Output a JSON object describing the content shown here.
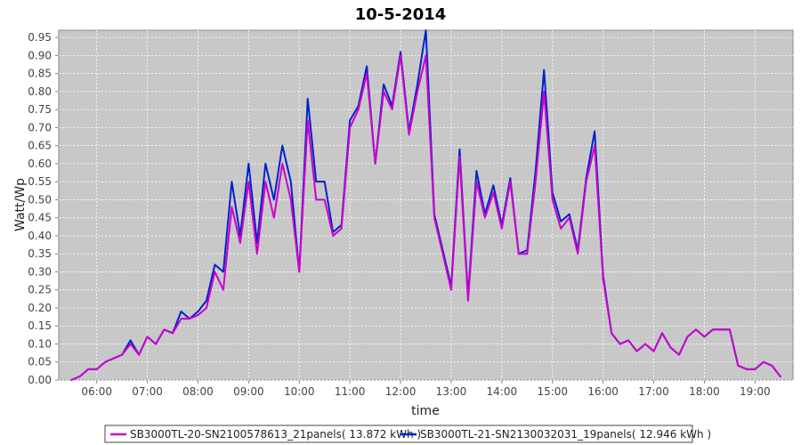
{
  "chart_data": {
    "type": "line",
    "title": "10-5-2014",
    "xlabel": "time",
    "ylabel": "Watt/Wp",
    "xlim": [
      "05:15",
      "19:45"
    ],
    "ylim": [
      0,
      0.97
    ],
    "x_ticks": [
      "06:00",
      "07:00",
      "08:00",
      "09:00",
      "10:00",
      "11:00",
      "12:00",
      "13:00",
      "14:00",
      "15:00",
      "16:00",
      "17:00",
      "18:00",
      "19:00"
    ],
    "y_ticks": [
      "0.00",
      "0.05",
      "0.10",
      "0.15",
      "0.20",
      "0.25",
      "0.30",
      "0.35",
      "0.40",
      "0.45",
      "0.50",
      "0.55",
      "0.60",
      "0.65",
      "0.70",
      "0.75",
      "0.80",
      "0.85",
      "0.90",
      "0.95"
    ],
    "grid": true,
    "plot_background": "#c8c8c8",
    "legend_position": "bottom",
    "x": [
      "05:30",
      "05:40",
      "05:50",
      "06:00",
      "06:10",
      "06:20",
      "06:30",
      "06:40",
      "06:50",
      "07:00",
      "07:10",
      "07:20",
      "07:30",
      "07:40",
      "07:50",
      "08:00",
      "08:10",
      "08:20",
      "08:30",
      "08:40",
      "08:50",
      "09:00",
      "09:10",
      "09:20",
      "09:30",
      "09:40",
      "09:50",
      "10:00",
      "10:10",
      "10:20",
      "10:30",
      "10:40",
      "10:50",
      "11:00",
      "11:10",
      "11:20",
      "11:30",
      "11:40",
      "11:50",
      "12:00",
      "12:10",
      "12:20",
      "12:30",
      "12:40",
      "12:50",
      "13:00",
      "13:10",
      "13:20",
      "13:30",
      "13:40",
      "13:50",
      "14:00",
      "14:10",
      "14:20",
      "14:30",
      "14:40",
      "14:50",
      "15:00",
      "15:10",
      "15:20",
      "15:30",
      "15:40",
      "15:50",
      "16:00",
      "16:10",
      "16:20",
      "16:30",
      "16:40",
      "16:50",
      "17:00",
      "17:10",
      "17:20",
      "17:30",
      "17:40",
      "17:50",
      "18:00",
      "18:10",
      "18:20",
      "18:30",
      "18:40",
      "18:50",
      "19:00",
      "19:10",
      "19:20",
      "19:30"
    ],
    "series": [
      {
        "name": "SB3000TL-20-SN2100578613_21panels( 13.872 kWh )",
        "color": "#cc00cc",
        "values": [
          0.0,
          0.01,
          0.03,
          0.03,
          0.05,
          0.06,
          0.07,
          0.1,
          0.07,
          0.12,
          0.1,
          0.14,
          0.13,
          0.17,
          0.17,
          0.18,
          0.2,
          0.3,
          0.25,
          0.48,
          0.38,
          0.55,
          0.35,
          0.55,
          0.45,
          0.6,
          0.5,
          0.3,
          0.72,
          0.5,
          0.5,
          0.4,
          0.42,
          0.7,
          0.75,
          0.85,
          0.6,
          0.8,
          0.75,
          0.9,
          0.68,
          0.8,
          0.9,
          0.45,
          0.35,
          0.25,
          0.62,
          0.22,
          0.55,
          0.45,
          0.52,
          0.42,
          0.55,
          0.35,
          0.35,
          0.55,
          0.8,
          0.5,
          0.42,
          0.45,
          0.35,
          0.55,
          0.65,
          0.28,
          0.13,
          0.1,
          0.11,
          0.08,
          0.1,
          0.08,
          0.13,
          0.09,
          0.07,
          0.12,
          0.14,
          0.12,
          0.14,
          0.14,
          0.14,
          0.04,
          0.03,
          0.03,
          0.05,
          0.04,
          0.01
        ]
      },
      {
        "name": "SB3000TL-21-SN2130032031_19panels( 12.946 kWh )",
        "color": "#0022cc",
        "values": [
          0.0,
          0.01,
          0.03,
          0.03,
          0.05,
          0.06,
          0.07,
          0.11,
          0.07,
          0.12,
          0.1,
          0.14,
          0.13,
          0.19,
          0.17,
          0.19,
          0.22,
          0.32,
          0.3,
          0.55,
          0.4,
          0.6,
          0.38,
          0.6,
          0.5,
          0.65,
          0.55,
          0.3,
          0.78,
          0.55,
          0.55,
          0.41,
          0.43,
          0.72,
          0.76,
          0.87,
          0.6,
          0.82,
          0.76,
          0.91,
          0.69,
          0.82,
          0.97,
          0.46,
          0.36,
          0.26,
          0.64,
          0.23,
          0.58,
          0.46,
          0.54,
          0.43,
          0.56,
          0.35,
          0.36,
          0.58,
          0.86,
          0.52,
          0.44,
          0.46,
          0.36,
          0.56,
          0.69,
          0.29,
          0.13,
          0.1,
          0.11,
          0.08,
          0.1,
          0.08,
          0.13,
          0.09,
          0.07,
          0.12,
          0.14,
          0.12,
          0.14,
          0.14,
          0.14,
          0.04,
          0.03,
          0.03,
          0.05,
          0.04,
          0.01
        ]
      }
    ]
  }
}
